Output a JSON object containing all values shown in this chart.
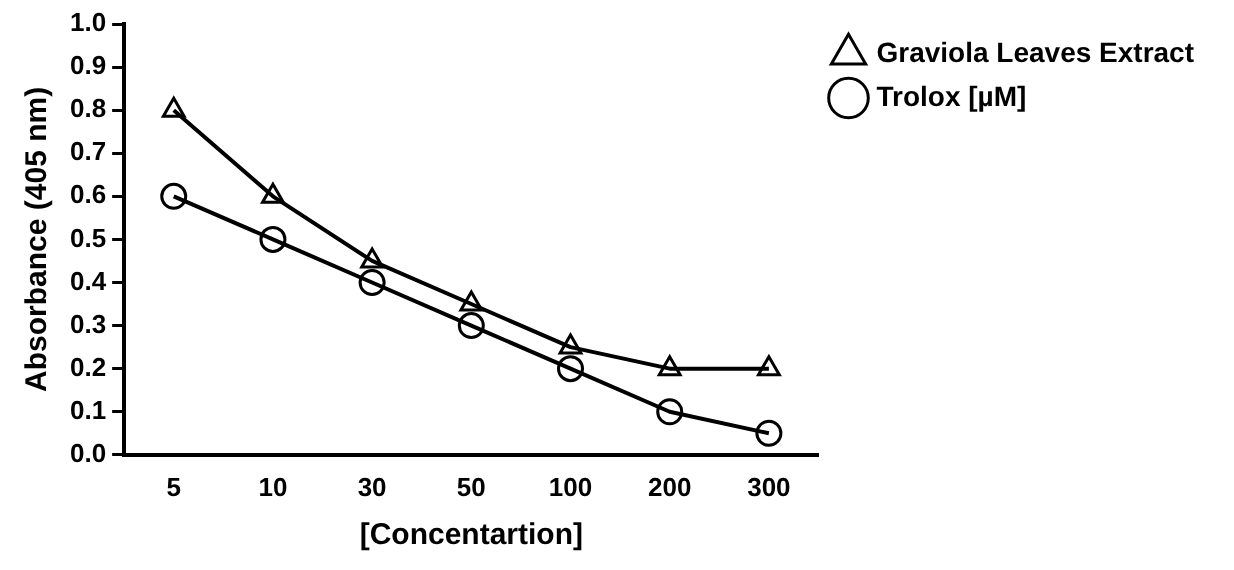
{
  "chart_data": {
    "type": "line",
    "xlabel": "[Concentartion]",
    "ylabel": "Absorbance (405 nm)",
    "categories": [
      "5",
      "10",
      "30",
      "50",
      "100",
      "200",
      "300"
    ],
    "ylim": [
      0,
      1
    ],
    "yticks": [
      {
        "value": 0,
        "label": "0.0"
      },
      {
        "value": 0.1,
        "label": "0.1"
      },
      {
        "value": 0.2,
        "label": "0.2"
      },
      {
        "value": 0.3,
        "label": "0.3"
      },
      {
        "value": 0.4,
        "label": "0.4"
      },
      {
        "value": 0.5,
        "label": "0.5"
      },
      {
        "value": 0.6,
        "label": "0.6"
      },
      {
        "value": 0.7,
        "label": "0.7"
      },
      {
        "value": 0.8,
        "label": "0.8"
      },
      {
        "value": 0.9,
        "label": "0.9"
      },
      {
        "value": 1,
        "label": "1.0"
      }
    ],
    "series": [
      {
        "name": "Graviola Leaves Extract",
        "color": "#000000",
        "marker": "triangle",
        "values": [
          0.8,
          0.6,
          0.45,
          0.35,
          0.25,
          0.2,
          0.2
        ]
      },
      {
        "name": "Trolox [µM]",
        "color": "#000000",
        "marker": "circle",
        "values": [
          0.6,
          0.5,
          0.4,
          0.3,
          0.2,
          0.1,
          0.05
        ]
      }
    ],
    "grid": false,
    "legend": "top right",
    "line_style": "solid"
  }
}
